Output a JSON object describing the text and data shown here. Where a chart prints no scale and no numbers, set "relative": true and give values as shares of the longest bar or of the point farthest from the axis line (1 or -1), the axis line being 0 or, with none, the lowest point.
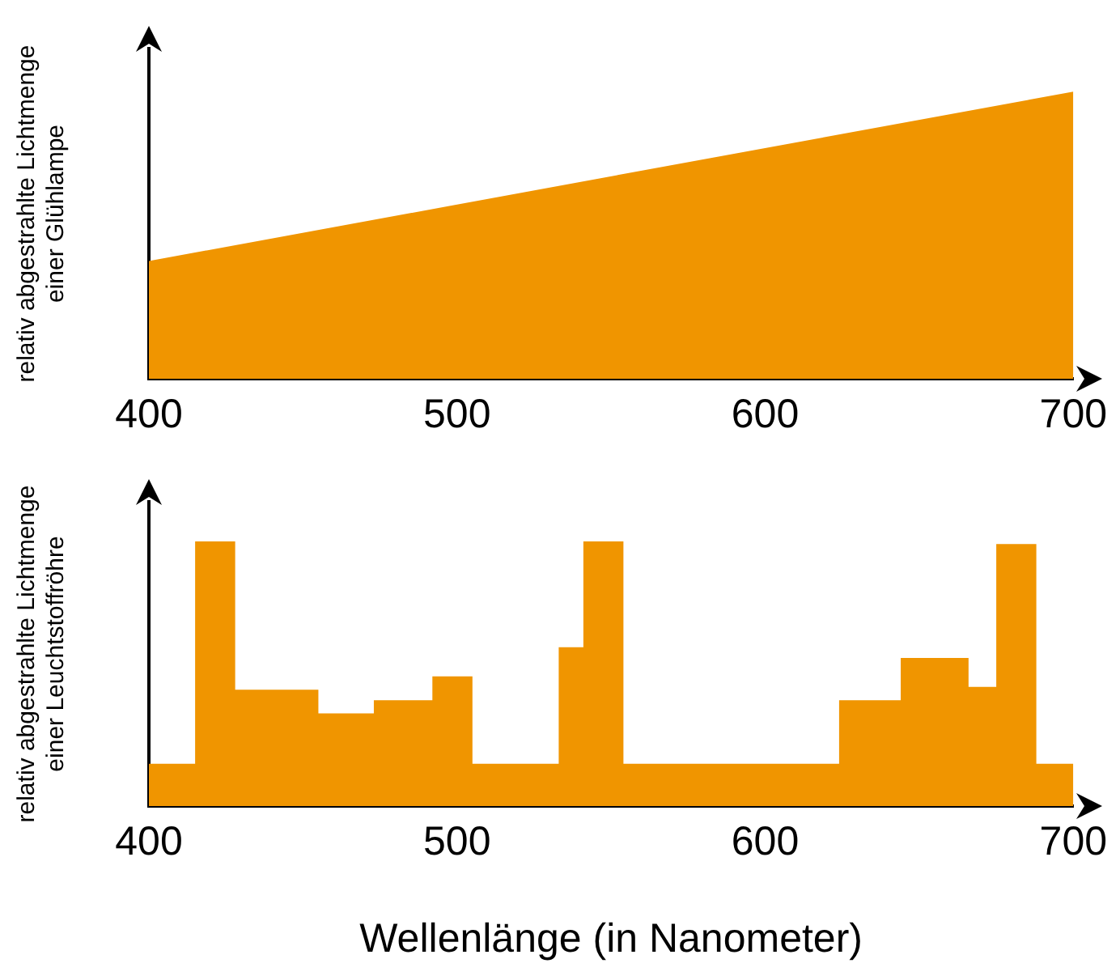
{
  "chart_data": [
    {
      "type": "area",
      "ylabel": "relativ abgestrahlte Lichtmenge\neiner Glühlampe",
      "x": [
        400,
        700
      ],
      "values": [
        0.41,
        1
      ],
      "color": "#f09500",
      "relative": true,
      "xlim": [
        400,
        700
      ],
      "xticks": [
        400,
        500,
        600,
        700
      ],
      "legend": false
    },
    {
      "type": "area",
      "ylabel": "relativ abgestrahlte Lichtmenge\neiner Leuchtstoffröhre",
      "xlabel": "Wellenlänge (in Nanometer)",
      "x": [
        400,
        415,
        415,
        428,
        428,
        455,
        455,
        473,
        473,
        492,
        492,
        505,
        505,
        533,
        533,
        541,
        541,
        554,
        554,
        624,
        624,
        644,
        644,
        666,
        666,
        675,
        675,
        688,
        688,
        700
      ],
      "values": [
        0.16,
        0.16,
        1,
        1,
        0.44,
        0.44,
        0.35,
        0.35,
        0.4,
        0.4,
        0.49,
        0.49,
        0.16,
        0.16,
        0.6,
        0.6,
        1,
        1,
        0.16,
        0.16,
        0.4,
        0.4,
        0.56,
        0.56,
        0.45,
        0.45,
        0.99,
        0.99,
        0.16,
        0.16
      ],
      "color": "#f09500",
      "relative": true,
      "xlim": [
        400,
        700
      ],
      "xticks": [
        400,
        500,
        600,
        700
      ],
      "legend": false
    }
  ]
}
